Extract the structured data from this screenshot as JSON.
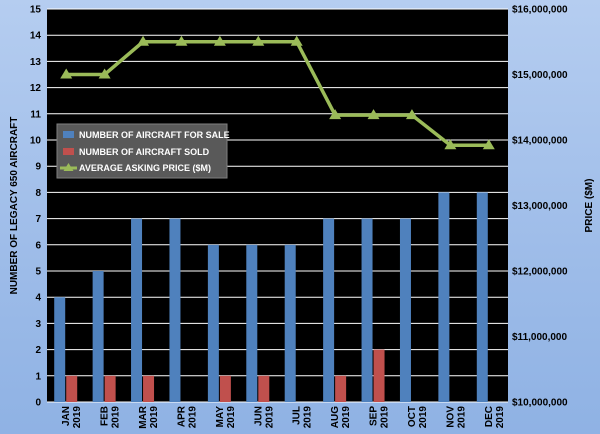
{
  "chart_data": {
    "type": "bar",
    "categories": [
      [
        "JAN",
        "2019"
      ],
      [
        "FEB",
        "2019"
      ],
      [
        "MAR",
        "2019"
      ],
      [
        "APR",
        "2019"
      ],
      [
        "MAY",
        "2019"
      ],
      [
        "JUN",
        "2019"
      ],
      [
        "JUL",
        "2019"
      ],
      [
        "AUG",
        "2019"
      ],
      [
        "SEP",
        "2019"
      ],
      [
        "OCT",
        "2019"
      ],
      [
        "NOV",
        "2019"
      ],
      [
        "DEC",
        "2019"
      ]
    ],
    "ylabel_left": "NUMBER OF LEGACY 650 AIRCRAFT",
    "ylabel_right": "PRICE ($M)",
    "ylim_left": [
      0,
      15
    ],
    "ylim_right": [
      10000000,
      16000000
    ],
    "left_ticks": [
      "0",
      "1",
      "2",
      "3",
      "4",
      "5",
      "6",
      "7",
      "8",
      "9",
      "10",
      "11",
      "12",
      "13",
      "14",
      "15"
    ],
    "right_ticks": [
      "$10,000,000",
      "$11,000,000",
      "$12,000,000",
      "$13,000,000",
      "$14,000,000",
      "$15,000,000",
      "$16,000,000"
    ],
    "grid": true,
    "legend_position": "left",
    "series": [
      {
        "name": "NUMBER OF AIRCRAFT FOR SALE",
        "kind": "bar",
        "axis": "left",
        "color": "#4f81bd",
        "values": [
          4,
          5,
          7,
          7,
          6,
          6,
          6,
          7,
          7,
          7,
          8,
          8
        ]
      },
      {
        "name": "NUMBER OF AIRCRAFT SOLD",
        "kind": "bar",
        "axis": "left",
        "color": "#c0504d",
        "values": [
          1,
          1,
          1,
          0,
          1,
          1,
          0,
          1,
          2,
          0,
          0,
          0
        ]
      },
      {
        "name": "AVERAGE ASKING PRICE ($M)",
        "kind": "line",
        "axis": "right",
        "color": "#9bbb59",
        "values": [
          15000000,
          15000000,
          15500000,
          15500000,
          15500000,
          15500000,
          15500000,
          14380000,
          14380000,
          14380000,
          13920000,
          13920000
        ]
      }
    ]
  }
}
